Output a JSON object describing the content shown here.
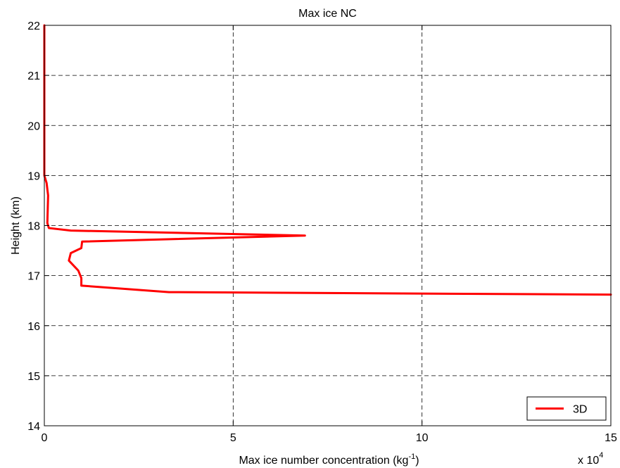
{
  "chart_data": {
    "type": "line",
    "title": "Max ice NC",
    "xlabel": {
      "text": "Max ice number concentration (kg",
      "superscript": "-1",
      "suffix": ")"
    },
    "ylabel": "Height (km)",
    "x_multiplier": {
      "base": "x 10",
      "exponent": "4"
    },
    "xlim": [
      0,
      150000
    ],
    "ylim": [
      14,
      22
    ],
    "x_ticks": [
      0,
      50000,
      100000,
      150000
    ],
    "x_tick_labels": [
      "0",
      "5",
      "10",
      "15"
    ],
    "y_ticks": [
      14,
      15,
      16,
      17,
      18,
      19,
      20,
      21,
      22
    ],
    "y_tick_labels": [
      "14",
      "15",
      "16",
      "17",
      "18",
      "19",
      "20",
      "21",
      "22"
    ],
    "grid": true,
    "legend_position": "bottom-right",
    "series": [
      {
        "name": "3D",
        "color": "#ff0000",
        "x": [
          0,
          0,
          0,
          0,
          600,
          1000,
          800,
          1200,
          7000,
          69000,
          10000,
          9800,
          7000,
          6500,
          9000,
          9800,
          9800,
          33000,
          150000
        ],
        "y": [
          22,
          21,
          20,
          19,
          18.85,
          18.6,
          18.05,
          17.95,
          17.9,
          17.8,
          17.68,
          17.55,
          17.45,
          17.3,
          17.1,
          16.95,
          16.8,
          16.67,
          16.62
        ]
      }
    ]
  }
}
